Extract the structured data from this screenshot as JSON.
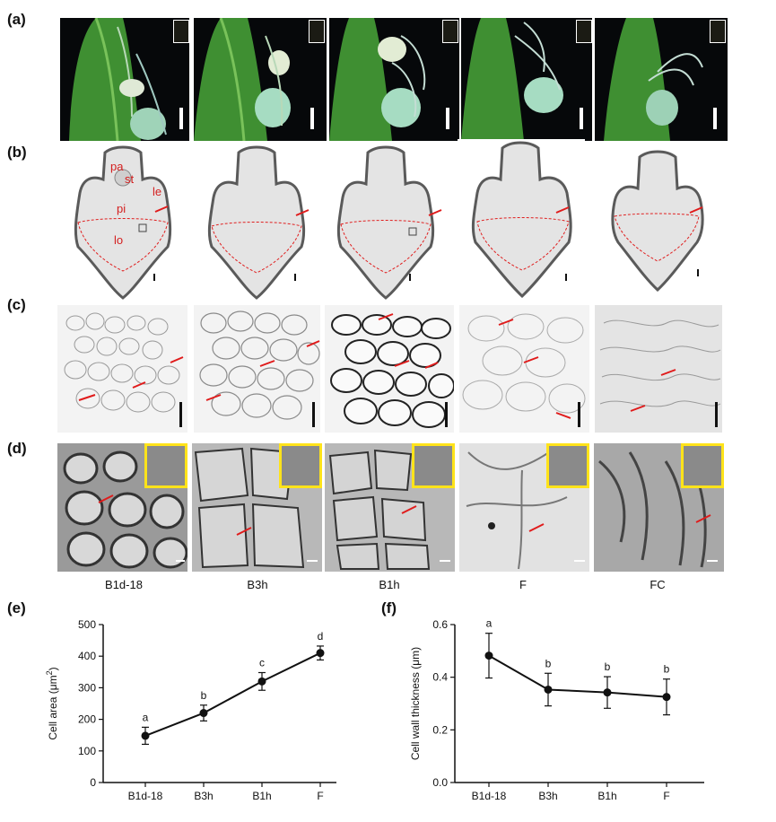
{
  "panels": {
    "a": "(a)",
    "b": "(b)",
    "c": "(c)",
    "d": "(d)",
    "e": "(e)",
    "f": "(f)"
  },
  "section_labels": {
    "pa": "pa",
    "st": "st",
    "le": "le",
    "pi": "pi",
    "lo": "lo"
  },
  "stages": [
    "B1d-18",
    "B3h",
    "B1h",
    "F",
    "FC"
  ],
  "colors": {
    "accent_red": "#e01b1b",
    "inset_yellow": "#ffe31a",
    "plant_green": "#3c8a2e"
  },
  "chart_data": [
    {
      "type": "line",
      "x": [
        "B1d-18",
        "B3h",
        "B1h",
        "F"
      ],
      "series": [
        {
          "values": [
            148,
            220,
            320,
            410
          ],
          "errors": [
            27,
            25,
            28,
            22
          ],
          "letters": [
            "a",
            "b",
            "c",
            "d"
          ]
        }
      ],
      "ylabel": "Cell area (μm",
      "ylabel_sup": "2",
      "ylabel_tail": ")",
      "ylim": [
        0,
        500
      ],
      "yticks": [
        "0",
        "100",
        "200",
        "300",
        "400",
        "500"
      ],
      "ytick_values": [
        0,
        100,
        200,
        300,
        400,
        500
      ]
    },
    {
      "type": "line",
      "x": [
        "B1d-18",
        "B3h",
        "B1h",
        "F"
      ],
      "series": [
        {
          "values": [
            0.482,
            0.353,
            0.342,
            0.325
          ],
          "errors": [
            0.085,
            0.062,
            0.06,
            0.068
          ],
          "letters": [
            "a",
            "b",
            "b",
            "b"
          ]
        }
      ],
      "ylabel": "Cell wall thickness (μm)",
      "ylim": [
        0,
        0.6
      ],
      "yticks": [
        "0.0",
        "0.2",
        "0.4",
        "0.6"
      ],
      "ytick_values": [
        0,
        0.2,
        0.4,
        0.6
      ]
    }
  ]
}
